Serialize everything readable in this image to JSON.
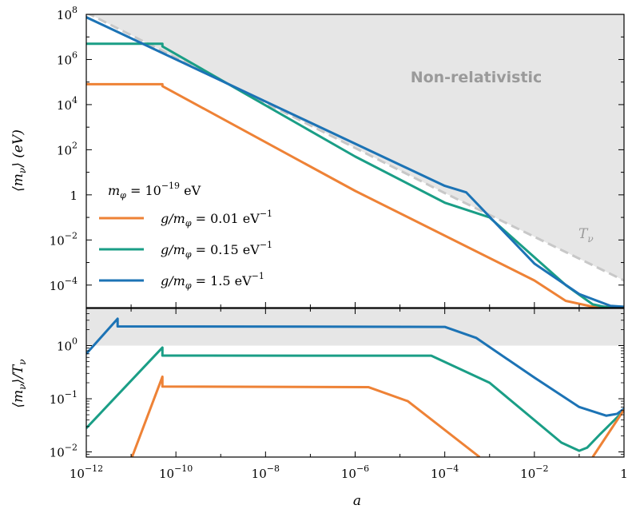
{
  "chart_data": [
    {
      "type": "line",
      "panel": "top",
      "ylabel": "⟨mν⟩ (eV)",
      "xscale": "log",
      "yscale": "log",
      "xlim": [
        1e-12,
        1
      ],
      "ylim": [
        1e-05,
        100000000.0
      ],
      "x_ticks": [
        "10",
        "10",
        "10",
        "10",
        "10",
        "10",
        "1"
      ],
      "x_tick_exps": [
        "−12",
        "−10",
        "−8",
        "−6",
        "−4",
        "−2",
        ""
      ],
      "y_ticks": [
        {
          "base": "10",
          "exp": "8"
        },
        {
          "base": "10",
          "exp": "6"
        },
        {
          "base": "10",
          "exp": "4"
        },
        {
          "base": "10",
          "exp": "2"
        },
        {
          "base": "1",
          "exp": ""
        },
        {
          "base": "10",
          "exp": "−2"
        },
        {
          "base": "10",
          "exp": "−4"
        }
      ],
      "shaded_region_label": "Non-relativistic",
      "reference_line": {
        "name": "Tν",
        "style": "dashed",
        "color": "#c8c8c8",
        "points": [
          [
            1e-12,
            120000000.0
          ],
          [
            0.0001,
            1.2
          ],
          [
            1,
            0.00016
          ]
        ]
      },
      "legend_title": "mφ = 10⁻¹⁹ eV",
      "legend_title_exp": "−19",
      "legend_placement": "center-left",
      "series": [
        {
          "name": "g/mφ = 0.01 eV⁻¹",
          "color": "#ee8236",
          "points": [
            [
              1e-12,
              80000.0
            ],
            [
              5e-11,
              80000.0
            ],
            [
              5e-11,
              66000.0
            ],
            [
              1e-06,
              1.5
            ],
            [
              0.01,
              0.00016
            ],
            [
              0.05,
              2e-05
            ],
            [
              0.2,
              1.1e-05
            ],
            [
              1,
              1.1e-05
            ]
          ]
        },
        {
          "name": "g/mφ = 0.15 eV⁻¹",
          "color": "#1a9e86",
          "points": [
            [
              1e-12,
              5000000.0
            ],
            [
              5e-11,
              5000000.0
            ],
            [
              5e-11,
              3800000.0
            ],
            [
              1e-06,
              50
            ],
            [
              0.0001,
              0.45
            ],
            [
              0.001,
              0.1
            ],
            [
              0.05,
              0.0001
            ],
            [
              0.2,
              1.4e-05
            ],
            [
              0.4,
              1.05e-05
            ],
            [
              1,
              1.05e-05
            ]
          ]
        },
        {
          "name": "g/mφ = 1.5 eV⁻¹",
          "color": "#1c73b5",
          "points": [
            [
              1e-12,
              75000000.0
            ],
            [
              0.0001,
              2.5
            ],
            [
              0.0003,
              1.3
            ],
            [
              0.01,
              0.0009
            ],
            [
              0.1,
              4e-05
            ],
            [
              0.5,
              1.2e-05
            ],
            [
              1,
              1.1e-05
            ]
          ]
        }
      ]
    },
    {
      "type": "line",
      "panel": "bottom",
      "xlabel": "a",
      "ylabel": "⟨mν⟩/Tν",
      "xscale": "log",
      "yscale": "log",
      "xlim": [
        1e-12,
        1
      ],
      "ylim": [
        0.008,
        5
      ],
      "y_ticks": [
        {
          "base": "10",
          "exp": "0"
        },
        {
          "base": "10",
          "exp": "−1"
        },
        {
          "base": "10",
          "exp": "−2"
        }
      ],
      "shaded_above": 1,
      "series": [
        {
          "name": "g/mφ = 0.01 eV⁻¹",
          "color": "#ee8236",
          "points": [
            [
              1.05e-11,
              0.008
            ],
            [
              5e-11,
              0.26
            ],
            [
              5e-11,
              0.17
            ],
            [
              2e-06,
              0.165
            ],
            [
              1.5e-05,
              0.09
            ],
            [
              0.0006,
              0.008
            ]
          ]
        },
        {
          "name": "g/mφ = 0.15 eV⁻¹",
          "color": "#1a9e86",
          "points": [
            [
              1e-12,
              0.028
            ],
            [
              5e-11,
              0.92
            ],
            [
              5e-11,
              0.65
            ],
            [
              5e-05,
              0.645
            ],
            [
              0.001,
              0.2
            ],
            [
              0.04,
              0.015
            ],
            [
              0.1,
              0.0105
            ],
            [
              0.15,
              0.012
            ],
            [
              0.3,
              0.022
            ],
            [
              1,
              0.06
            ]
          ]
        },
        {
          "name": "g/mφ = 1.5 eV⁻¹",
          "color": "#1c73b5",
          "points": [
            [
              1e-12,
              0.7
            ],
            [
              5e-12,
              3.2
            ],
            [
              5e-12,
              2.3
            ],
            [
              0.0001,
              2.25
            ],
            [
              0.0005,
              1.4
            ],
            [
              0.01,
              0.25
            ],
            [
              0.1,
              0.07
            ],
            [
              0.4,
              0.048
            ],
            [
              0.7,
              0.052
            ],
            [
              1,
              0.065
            ]
          ]
        }
      ],
      "extra_segments": [
        {
          "color": "#ee8236",
          "points": [
            [
              0.2,
              0.008
            ],
            [
              1,
              0.062
            ]
          ]
        }
      ]
    }
  ]
}
